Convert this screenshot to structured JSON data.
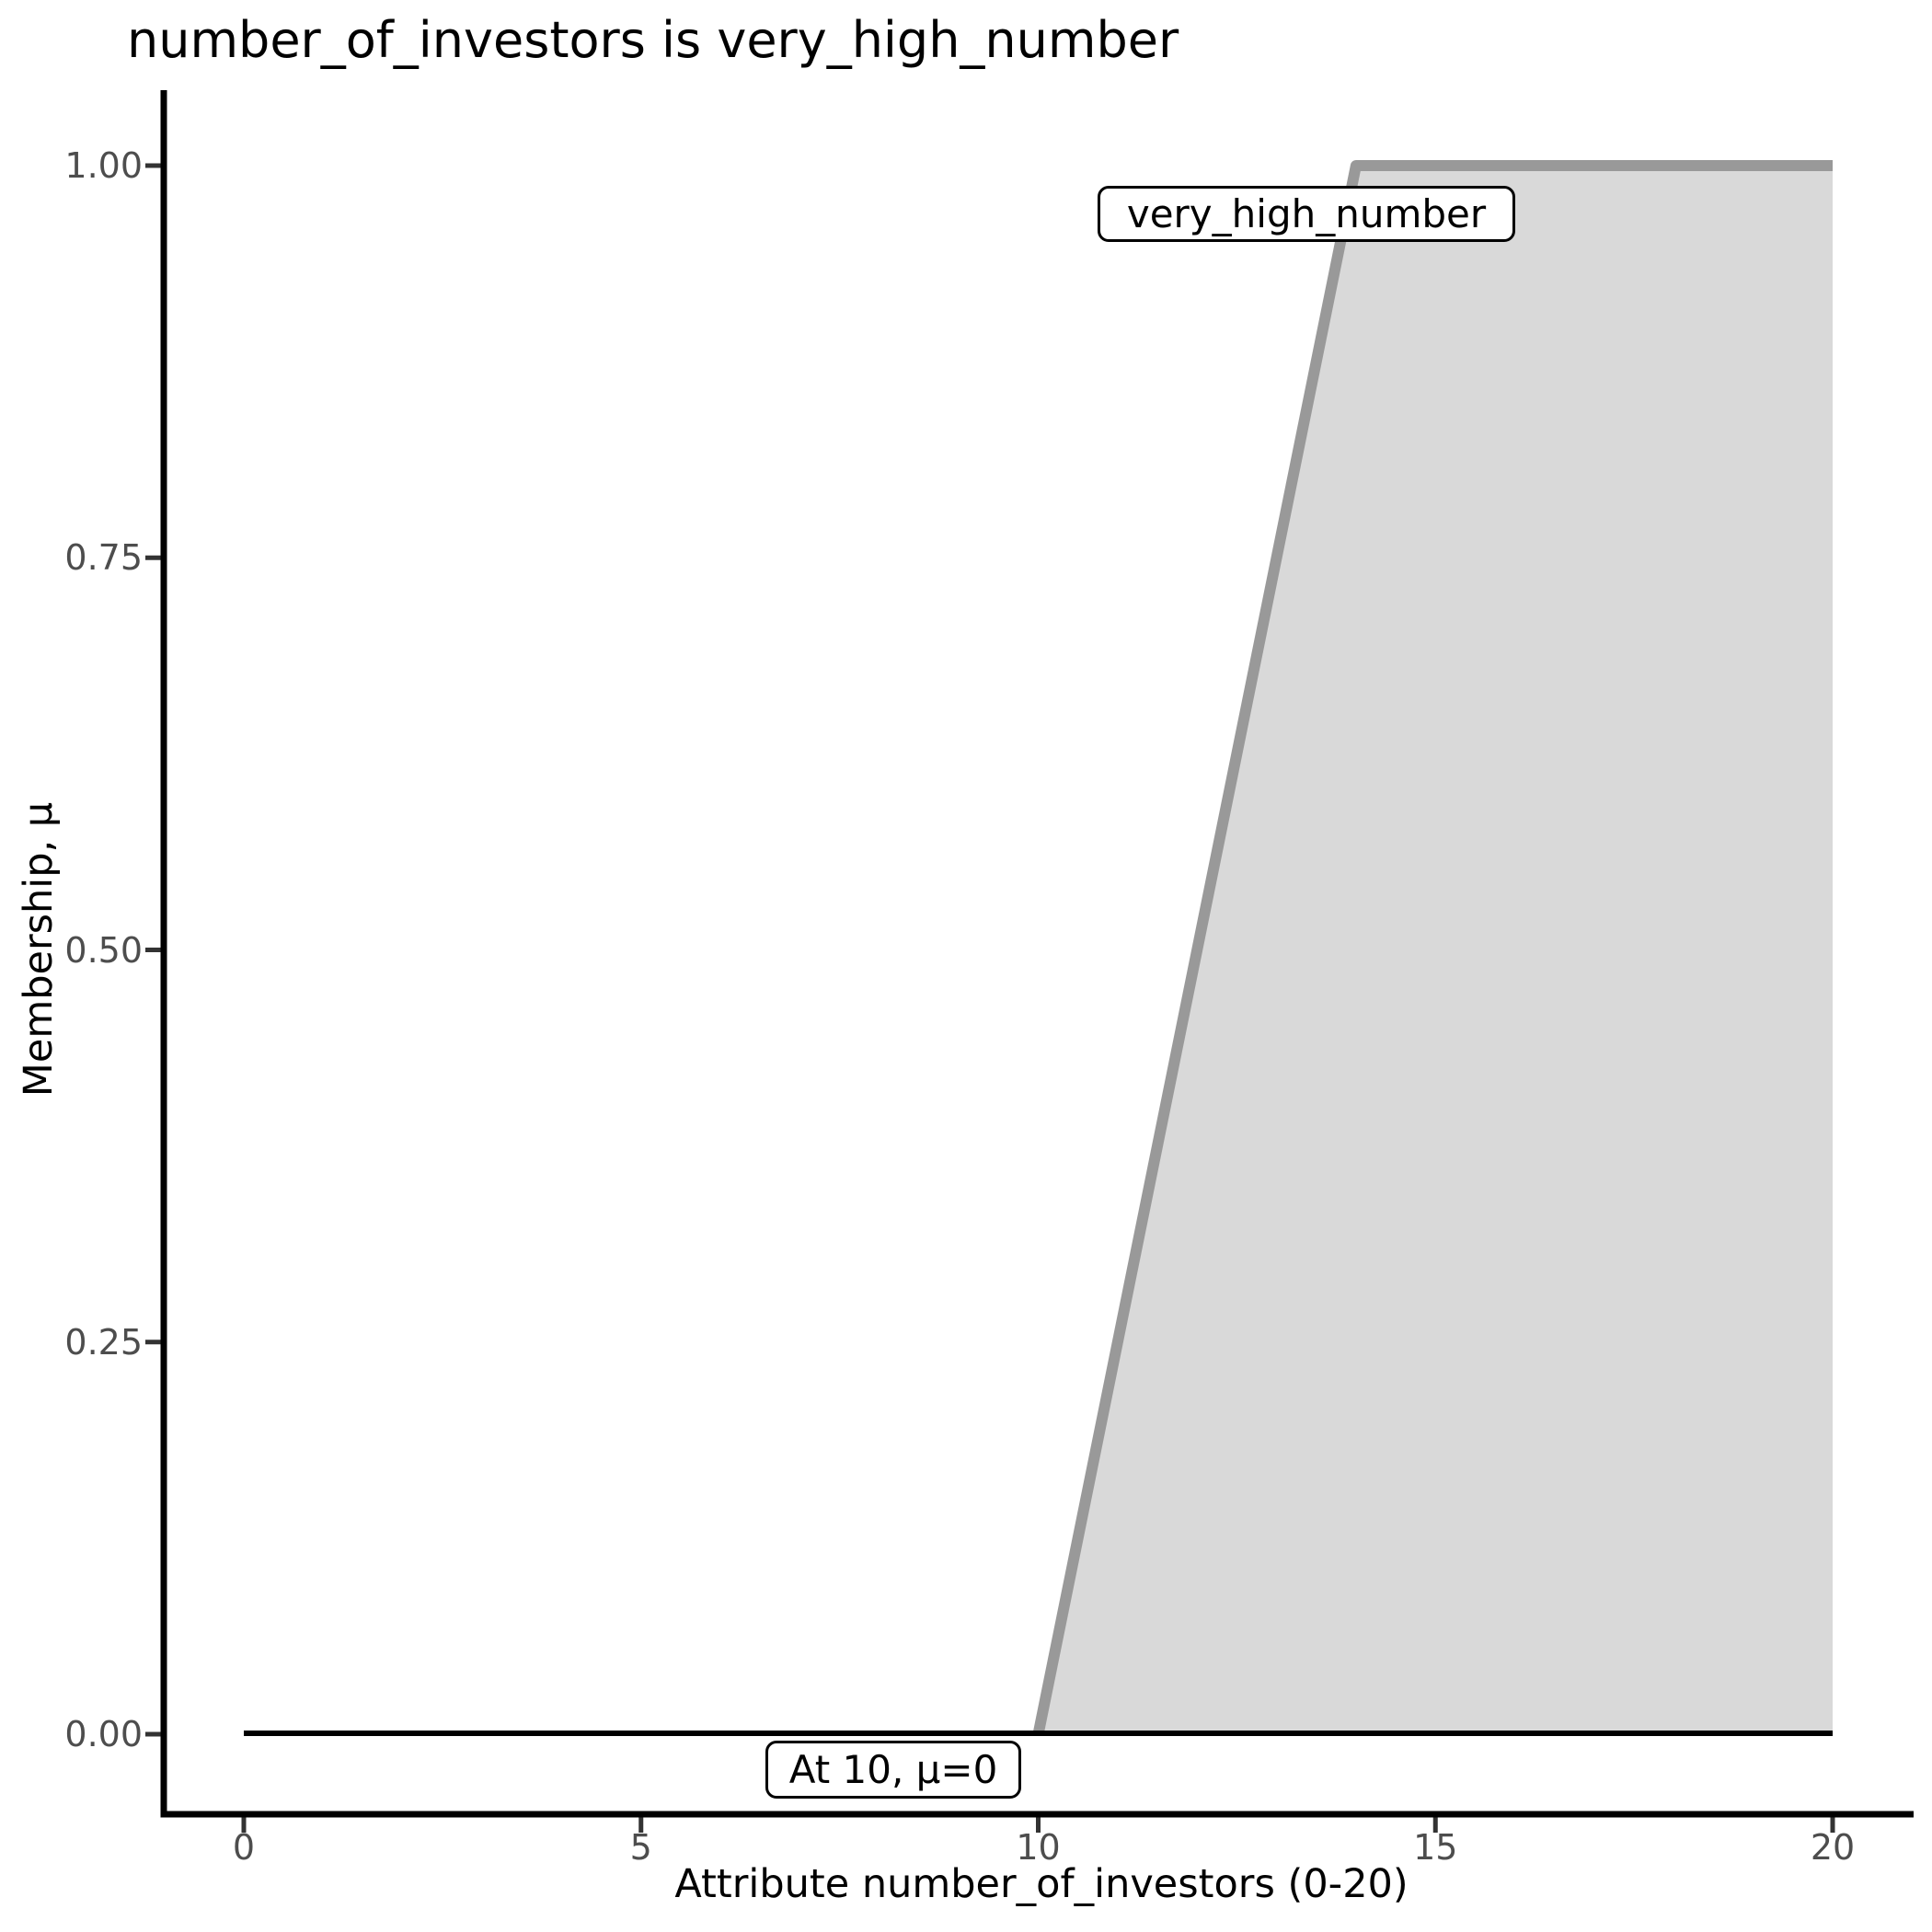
{
  "title": "number_of_investors is very_high_number",
  "axes": {
    "x": {
      "label": "Attribute number_of_investors (0-20)",
      "ticks": [
        "0",
        "5",
        "10",
        "15",
        "20"
      ]
    },
    "y": {
      "label": "Membership, μ",
      "ticks": [
        "1.00",
        "0.75",
        "0.50",
        "0.25",
        "0.00"
      ]
    }
  },
  "annotations": {
    "set_label": "very_high_number",
    "point_label": "At 10, μ=0"
  },
  "colors": {
    "area_fill": "#d9d9d9",
    "membership_line": "#999999",
    "baseline": "#000000",
    "axis": "#000000",
    "tick_mark": "#333333",
    "tick_text": "#4d4d4d",
    "title_text": "#000000"
  },
  "chart_data": {
    "type": "area",
    "title": "number_of_investors is very_high_number",
    "xlabel": "Attribute number_of_investors (0-20)",
    "ylabel": "Membership, μ",
    "xlim": [
      0,
      20
    ],
    "ylim": [
      0,
      1
    ],
    "x_ticks": [
      0,
      5,
      10,
      15,
      20
    ],
    "y_ticks": [
      1.0,
      0.75,
      0.5,
      0.25,
      0.0
    ],
    "grid": false,
    "legend": false,
    "series": [
      {
        "name": "very_high_number",
        "role": "fuzzy-membership-function",
        "shape": "right-shoulder-trapezoid",
        "points_x": [
          10,
          14,
          20
        ],
        "points_mu": [
          0,
          1,
          1
        ],
        "fill": "#d9d9d9",
        "stroke": "#999999",
        "stroke_width": 12
      },
      {
        "name": "zero-membership-baseline",
        "points_x": [
          0,
          20
        ],
        "points_mu": [
          0,
          0
        ],
        "stroke": "#000000",
        "stroke_width": 6
      }
    ],
    "annotations": [
      {
        "text": "very_high_number",
        "near_x": 13,
        "near_mu": 0.97
      },
      {
        "text": "At 10, μ=0",
        "near_x": 8.5,
        "near_mu": -0.03
      }
    ]
  }
}
